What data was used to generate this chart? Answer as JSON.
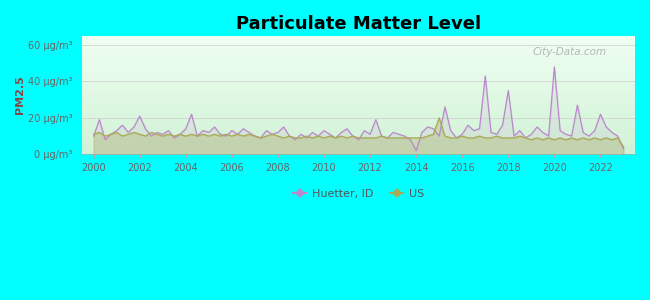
{
  "title": "Particulate Matter Level",
  "ylabel": "PM2.5",
  "xlabel": "",
  "ylim": [
    0,
    65
  ],
  "yticks": [
    0,
    20,
    40,
    60
  ],
  "ytick_labels": [
    "0 μg/m³",
    "20 μg/m³",
    "40 μg/m³",
    "60 μg/m³"
  ],
  "xlim": [
    1999.5,
    2023.5
  ],
  "xticks": [
    2000,
    2002,
    2004,
    2006,
    2008,
    2010,
    2012,
    2014,
    2016,
    2018,
    2020,
    2022
  ],
  "background_outer": "#00FFFF",
  "plot_bg": "#dff5e3",
  "huetter_color": "#bb88cc",
  "us_color": "#aaaa55",
  "legend_huetter": "Huetter, ID",
  "legend_us": "US",
  "watermark": "City-Data.com",
  "title_fontsize": 13,
  "tick_fontsize": 7,
  "ylabel_fontsize": 8,
  "huetter_x": [
    2000.0,
    2000.25,
    2000.5,
    2000.75,
    2001.0,
    2001.25,
    2001.5,
    2001.75,
    2002.0,
    2002.25,
    2002.5,
    2002.75,
    2003.0,
    2003.25,
    2003.5,
    2003.75,
    2004.0,
    2004.25,
    2004.5,
    2004.75,
    2005.0,
    2005.25,
    2005.5,
    2005.75,
    2006.0,
    2006.25,
    2006.5,
    2006.75,
    2007.0,
    2007.25,
    2007.5,
    2007.75,
    2008.0,
    2008.25,
    2008.5,
    2008.75,
    2009.0,
    2009.25,
    2009.5,
    2009.75,
    2010.0,
    2010.25,
    2010.5,
    2010.75,
    2011.0,
    2011.25,
    2011.5,
    2011.75,
    2012.0,
    2012.25,
    2012.5,
    2012.75,
    2013.0,
    2013.25,
    2013.5,
    2013.75,
    2014.0,
    2014.25,
    2014.5,
    2014.75,
    2015.0,
    2015.25,
    2015.5,
    2015.75,
    2016.0,
    2016.25,
    2016.5,
    2016.75,
    2017.0,
    2017.25,
    2017.5,
    2017.75,
    2018.0,
    2018.25,
    2018.5,
    2018.75,
    2019.0,
    2019.25,
    2019.5,
    2019.75,
    2020.0,
    2020.25,
    2020.5,
    2020.75,
    2021.0,
    2021.25,
    2021.5,
    2021.75,
    2022.0,
    2022.25,
    2022.5,
    2022.75,
    2023.0
  ],
  "huetter_y": [
    10,
    19,
    8,
    11,
    13,
    16,
    12,
    15,
    21,
    14,
    10,
    12,
    11,
    13,
    9,
    11,
    14,
    22,
    10,
    13,
    12,
    15,
    11,
    10,
    13,
    11,
    14,
    12,
    10,
    9,
    13,
    11,
    12,
    15,
    10,
    8,
    11,
    9,
    12,
    10,
    13,
    11,
    9,
    12,
    14,
    10,
    8,
    13,
    11,
    19,
    10,
    9,
    12,
    11,
    10,
    8,
    2,
    12,
    15,
    14,
    10,
    26,
    13,
    9,
    11,
    16,
    13,
    14,
    43,
    12,
    11,
    16,
    35,
    10,
    13,
    9,
    11,
    15,
    12,
    10,
    48,
    13,
    11,
    10,
    27,
    12,
    10,
    13,
    22,
    15,
    12,
    10,
    3
  ],
  "us_y": [
    11,
    12,
    10,
    11,
    12,
    10,
    11,
    12,
    11,
    10,
    12,
    11,
    10,
    11,
    10,
    11,
    10,
    11,
    10,
    11,
    10,
    11,
    10,
    11,
    10,
    11,
    10,
    11,
    10,
    9,
    10,
    11,
    10,
    9,
    10,
    9,
    9,
    10,
    9,
    10,
    9,
    10,
    9,
    10,
    9,
    10,
    9,
    9,
    9,
    9,
    10,
    9,
    9,
    9,
    9,
    9,
    9,
    9,
    10,
    11,
    20,
    10,
    9,
    9,
    10,
    9,
    9,
    10,
    9,
    9,
    10,
    9,
    9,
    9,
    10,
    9,
    8,
    9,
    8,
    9,
    8,
    9,
    8,
    9,
    8,
    9,
    8,
    9,
    8,
    9,
    8,
    9,
    4
  ]
}
